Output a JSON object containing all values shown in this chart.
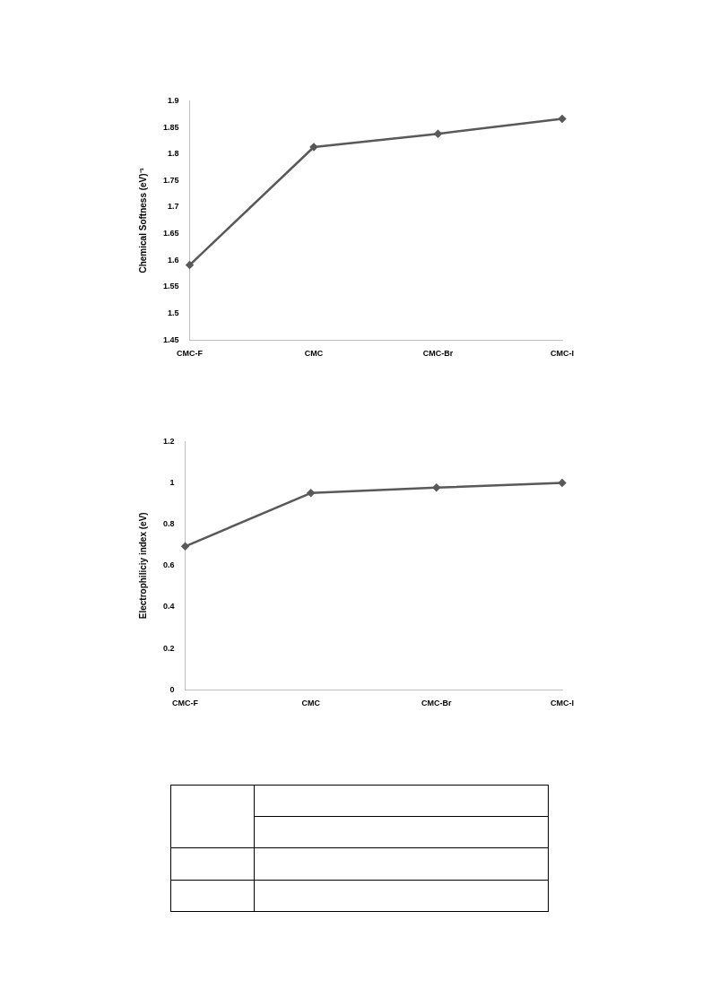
{
  "chart_data": [
    {
      "type": "line",
      "categories": [
        "CMC-F",
        "CMC",
        "CMC-Br",
        "CMC-I"
      ],
      "values": [
        1.591,
        1.813,
        1.838,
        1.866
      ],
      "color": "#595959",
      "ylabel": "Chemical Softness (eV)⁻¹",
      "ylim": [
        1.45,
        1.9
      ],
      "yticks": [
        1.45,
        1.5,
        1.55,
        1.6,
        1.65,
        1.7,
        1.75,
        1.8,
        1.85,
        1.9
      ],
      "marker": "diamond",
      "grid": false,
      "legend": false
    },
    {
      "type": "line",
      "categories": [
        "CMC-F",
        "CMC",
        "CMC-Br",
        "CMC-I"
      ],
      "values": [
        0.693,
        0.951,
        0.977,
        1.0
      ],
      "color": "#595959",
      "ylabel": "Electrophiliciy index (eV)",
      "ylim": [
        0,
        1.2
      ],
      "yticks": [
        0,
        0.2,
        0.4,
        0.6,
        0.8,
        1,
        1.2
      ],
      "marker": "diamond",
      "grid": false,
      "legend": false
    }
  ]
}
